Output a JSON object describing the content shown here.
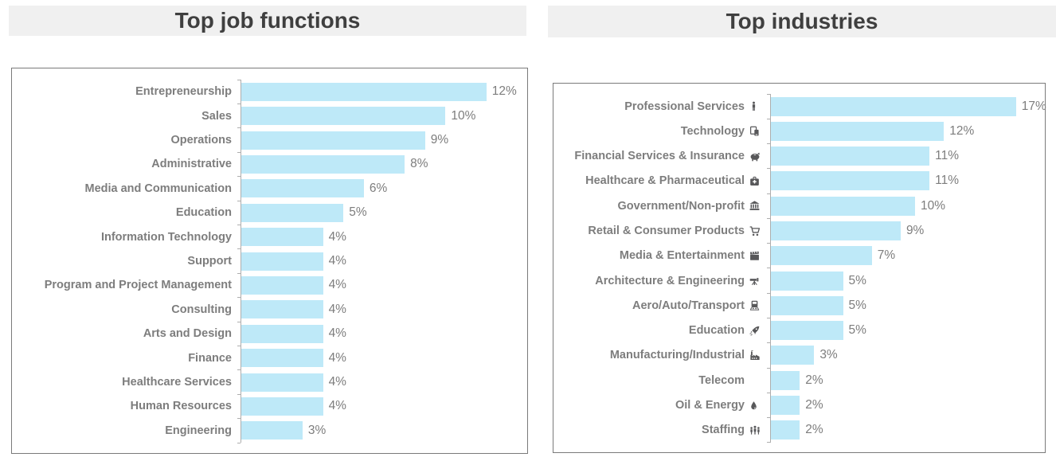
{
  "colors": {
    "bar": "#bee9f8",
    "label_text": "#7d7d7d",
    "title_text": "#3f3f3f",
    "title_band_background": "#f0f0f0",
    "chart_border": "#7a7a7a",
    "axis": "#aeaeae",
    "icon": "#58585a"
  },
  "chart_data": [
    {
      "type": "bar",
      "orientation": "horizontal",
      "title": "Top job functions",
      "unit": "%",
      "xlim": [
        0,
        14
      ],
      "grid": false,
      "value_labels": "outside-end",
      "legend": "none",
      "rows": [
        {
          "category": "Entrepreneurship",
          "icon": null,
          "value": 12,
          "display": "12%"
        },
        {
          "category": "Sales",
          "icon": null,
          "value": 10,
          "display": "10%"
        },
        {
          "category": "Operations",
          "icon": null,
          "value": 9,
          "display": "9%"
        },
        {
          "category": "Administrative",
          "icon": null,
          "value": 8,
          "display": "8%"
        },
        {
          "category": "Media and Communication",
          "icon": null,
          "value": 6,
          "display": "6%"
        },
        {
          "category": "Education",
          "icon": null,
          "value": 5,
          "display": "5%"
        },
        {
          "category": "Information Technology",
          "icon": null,
          "value": 4,
          "display": "4%"
        },
        {
          "category": "Support",
          "icon": null,
          "value": 4,
          "display": "4%"
        },
        {
          "category": "Program and Project Management",
          "icon": null,
          "value": 4,
          "display": "4%"
        },
        {
          "category": "Consulting",
          "icon": null,
          "value": 4,
          "display": "4%"
        },
        {
          "category": "Arts and Design",
          "icon": null,
          "value": 4,
          "display": "4%"
        },
        {
          "category": "Finance",
          "icon": null,
          "value": 4,
          "display": "4%"
        },
        {
          "category": "Healthcare Services",
          "icon": null,
          "value": 4,
          "display": "4%"
        },
        {
          "category": "Human Resources",
          "icon": null,
          "value": 4,
          "display": "4%"
        },
        {
          "category": "Engineering",
          "icon": null,
          "value": 3,
          "display": "3%"
        }
      ]
    },
    {
      "type": "bar",
      "orientation": "horizontal",
      "title": "Top industries",
      "unit": "%",
      "xlim": [
        0,
        19
      ],
      "grid": false,
      "value_labels": "outside-end",
      "legend": "none",
      "rows": [
        {
          "category": "Professional Services",
          "icon": "person-icon",
          "value": 17,
          "display": "17%"
        },
        {
          "category": "Technology",
          "icon": "devices-icon",
          "value": 12,
          "display": "12%"
        },
        {
          "category": "Financial Services & Insurance",
          "icon": "piggy-bank-icon",
          "value": 11,
          "display": "11%"
        },
        {
          "category": "Healthcare & Pharmaceutical",
          "icon": "medical-bag-icon",
          "value": 11,
          "display": "11%"
        },
        {
          "category": "Government/Non-profit",
          "icon": "bank-icon",
          "value": 10,
          "display": "10%"
        },
        {
          "category": "Retail & Consumer Products",
          "icon": "shopping-cart-icon",
          "value": 9,
          "display": "9%"
        },
        {
          "category": "Media & Entertainment",
          "icon": "clapperboard-icon",
          "value": 7,
          "display": "7%"
        },
        {
          "category": "Architecture & Engineering",
          "icon": "surveyor-level-icon",
          "value": 5,
          "display": "5%"
        },
        {
          "category": "Aero/Auto/Transport",
          "icon": "train-icon",
          "value": 5,
          "display": "5%"
        },
        {
          "category": "Education",
          "icon": "rocket-icon",
          "value": 5,
          "display": "5%"
        },
        {
          "category": "Manufacturing/Industrial",
          "icon": "factory-icon",
          "value": 3,
          "display": "3%"
        },
        {
          "category": "Telecom",
          "icon": null,
          "value": 2,
          "display": "2%"
        },
        {
          "category": "Oil & Energy",
          "icon": "droplet-icon",
          "value": 2,
          "display": "2%"
        },
        {
          "category": "Staffing",
          "icon": "people-icon",
          "value": 2,
          "display": "2%"
        }
      ]
    }
  ]
}
